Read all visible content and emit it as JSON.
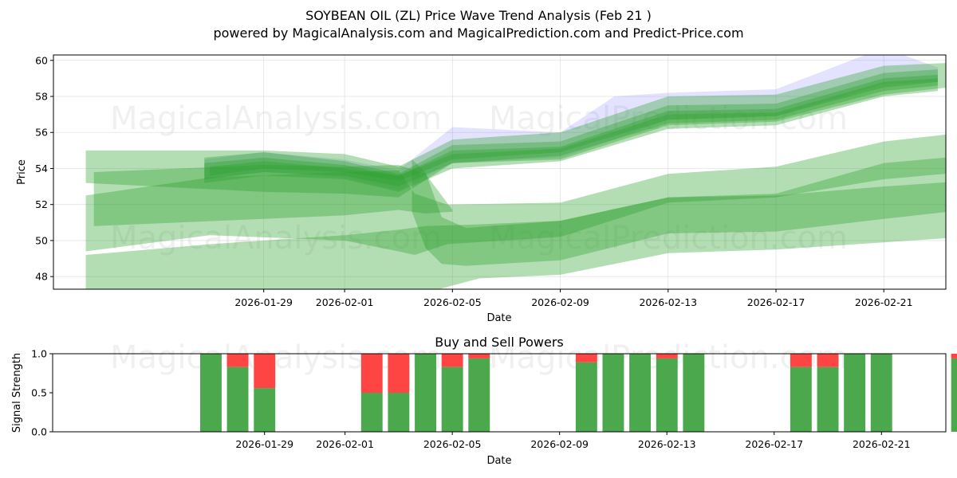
{
  "title": "SOYBEAN OIL (ZL) Price Wave Trend Analysis (Feb 21 )",
  "subtitle": "powered by MagicalAnalysis.com and MagicalPrediction.com and Predict-Price.com",
  "watermarks": [
    "MagicalAnalysis.com",
    "MagicalPrediction.com",
    "MagicalAnalysis.com",
    "MagicalPrediction.com",
    "MagicalAnalysis.com",
    "MagicalPrediction.com"
  ],
  "colors": {
    "band": "#2ca02c",
    "blue": "#6666ff",
    "buy": "#4ca84c",
    "sell": "#ff4444"
  },
  "chart_data": [
    {
      "type": "area",
      "title": "",
      "xlabel": "Date",
      "ylabel": "Price",
      "ylim": [
        47.3,
        60.3
      ],
      "xlim": [
        -4.8,
        28.3
      ],
      "x_origin": "2026-01-26",
      "x_ticks": [
        {
          "day": 3,
          "label": "2026-01-29"
        },
        {
          "day": 6,
          "label": "2026-02-01"
        },
        {
          "day": 10,
          "label": "2026-02-05"
        },
        {
          "day": 14,
          "label": "2026-02-09"
        },
        {
          "day": 18,
          "label": "2026-02-13"
        },
        {
          "day": 22,
          "label": "2026-02-17"
        },
        {
          "day": 26,
          "label": "2026-02-21"
        }
      ],
      "y_ticks": [
        48,
        50,
        52,
        54,
        56,
        58,
        60
      ],
      "grid": true,
      "bands": [
        {
          "kind": "blue",
          "x": [
            0.8,
            3,
            6,
            8,
            10,
            14,
            16,
            18,
            22,
            26,
            28
          ],
          "lower": [
            53.4,
            53.8,
            53.5,
            52.8,
            54.3,
            54.6,
            55.6,
            56.7,
            56.9,
            58.7,
            58.8
          ],
          "upper": [
            54.5,
            54.9,
            54.5,
            53.9,
            56.3,
            56.0,
            58.0,
            58.2,
            58.4,
            60.7,
            59.6
          ]
        },
        {
          "kind": "green",
          "x": [
            -3.6,
            3,
            6,
            8,
            10,
            14,
            18,
            22,
            26,
            29
          ],
          "lower": [
            53.2,
            52.7,
            52.6,
            52.4,
            54.3,
            54.5,
            56.4,
            56.6,
            58.1,
            58.6
          ],
          "upper": [
            55.0,
            55.0,
            54.8,
            54.1,
            55.6,
            56.0,
            58.0,
            58.1,
            59.7,
            59.9
          ]
        },
        {
          "kind": "green",
          "x": [
            0.8,
            3,
            6,
            8,
            10,
            14,
            18,
            22,
            26,
            28
          ],
          "lower": [
            53.2,
            53.6,
            53.4,
            52.7,
            54.0,
            54.4,
            56.2,
            56.4,
            58.0,
            58.3
          ],
          "upper": [
            54.6,
            54.9,
            54.4,
            53.7,
            55.3,
            55.5,
            57.5,
            57.6,
            59.3,
            59.5
          ]
        },
        {
          "kind": "green",
          "x": [
            0.8,
            3,
            6,
            8,
            10,
            14,
            18,
            22,
            26,
            28
          ],
          "lower": [
            53.4,
            53.8,
            53.6,
            53.0,
            54.3,
            54.7,
            56.5,
            56.7,
            58.3,
            58.6
          ],
          "upper": [
            54.3,
            54.6,
            54.2,
            53.6,
            55.0,
            55.2,
            57.2,
            57.3,
            59.0,
            59.2
          ]
        },
        {
          "kind": "green",
          "x": [
            1,
            3,
            6,
            8,
            10,
            14,
            18,
            22,
            26,
            28
          ],
          "lower": [
            53.6,
            54.0,
            53.8,
            53.3,
            54.5,
            54.9,
            56.7,
            56.9,
            58.5,
            58.8
          ],
          "upper": [
            54.1,
            54.4,
            54.0,
            53.6,
            54.8,
            55.1,
            57.0,
            57.1,
            58.8,
            59.0
          ]
        },
        {
          "kind": "green",
          "x": [
            -3.3,
            3,
            6,
            8,
            9,
            10
          ],
          "lower": [
            50.8,
            51.2,
            51.4,
            51.7,
            51.5,
            51.6
          ],
          "upper": [
            53.8,
            54.2,
            54.1,
            54.2,
            53.7,
            51.7
          ]
        },
        {
          "kind": "green",
          "x": [
            -3.6,
            1,
            6,
            8,
            8.6,
            9.8,
            14,
            18,
            22,
            26,
            29
          ],
          "lower": [
            49.4,
            50.3,
            50.0,
            49.4,
            49.2,
            49.8,
            50.2,
            52.1,
            52.4,
            53.4,
            53.8
          ],
          "upper": [
            52.5,
            53.5,
            53.8,
            53.9,
            52.6,
            52.0,
            52.1,
            53.7,
            54.1,
            55.5,
            56.0
          ]
        },
        {
          "kind": "green",
          "x": [
            -3.6,
            1,
            6,
            8,
            9,
            11,
            14,
            18,
            22,
            26,
            29
          ],
          "lower": [
            46.8,
            46.6,
            46.5,
            46.8,
            47.1,
            47.9,
            48.1,
            49.3,
            49.5,
            49.9,
            50.2
          ],
          "upper": [
            49.2,
            49.8,
            50.3,
            50.6,
            50.8,
            50.9,
            51.1,
            52.4,
            52.6,
            54.3,
            54.7
          ]
        },
        {
          "kind": "green",
          "x": [
            8.5,
            9,
            9.6,
            10.5,
            14,
            18,
            22,
            26,
            29
          ],
          "lower": [
            51.6,
            49.6,
            48.7,
            48.6,
            48.9,
            50.4,
            50.5,
            51.2,
            51.7
          ],
          "upper": [
            54.5,
            53.8,
            51.3,
            50.7,
            51.1,
            52.4,
            52.5,
            53.0,
            53.3
          ]
        }
      ]
    },
    {
      "type": "bar",
      "title": "Buy and Sell Powers",
      "xlabel": "Date",
      "ylabel": "Signal Strength",
      "ylim": [
        0,
        1
      ],
      "xlim": [
        -4.9,
        28.4
      ],
      "x_ticks": [
        {
          "day": 3,
          "label": "2026-01-29"
        },
        {
          "day": 6,
          "label": "2026-02-01"
        },
        {
          "day": 10,
          "label": "2026-02-05"
        },
        {
          "day": 14,
          "label": "2026-02-09"
        },
        {
          "day": 18,
          "label": "2026-02-13"
        },
        {
          "day": 22,
          "label": "2026-02-17"
        },
        {
          "day": 26,
          "label": "2026-02-21"
        }
      ],
      "y_ticks": [
        {
          "v": 0,
          "label": "0.0"
        },
        {
          "v": 0.5,
          "label": "0.5"
        },
        {
          "v": 1,
          "label": "1.0"
        }
      ],
      "series": [
        {
          "name": "Buy",
          "color": "#4ca84c",
          "days": [
            1,
            2,
            3,
            7,
            8,
            9,
            10,
            11,
            15,
            16,
            17,
            18,
            19,
            23,
            24,
            25,
            26,
            29
          ],
          "values": [
            1.0,
            0.83,
            0.56,
            0.5,
            0.5,
            1.0,
            0.83,
            0.94,
            0.89,
            1.0,
            1.0,
            0.94,
            1.0,
            0.83,
            0.83,
            1.0,
            1.0,
            0.94
          ]
        },
        {
          "name": "Sell",
          "color": "#ff4444",
          "days": [
            1,
            2,
            3,
            7,
            8,
            9,
            10,
            11,
            15,
            16,
            17,
            18,
            19,
            23,
            24,
            25,
            26,
            29
          ],
          "values": [
            0.0,
            0.17,
            0.44,
            0.5,
            0.5,
            0.0,
            0.17,
            0.06,
            0.11,
            0.0,
            0.0,
            0.06,
            0.0,
            0.17,
            0.17,
            0.0,
            0.0,
            0.06
          ]
        }
      ]
    }
  ]
}
